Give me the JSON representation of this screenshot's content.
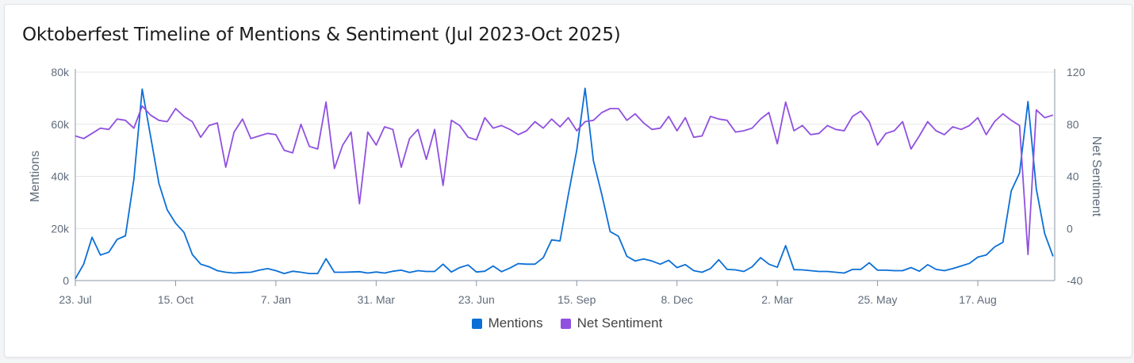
{
  "title": "Oktoberfest Timeline of Mentions & Sentiment (Jul 2023-Oct 2025)",
  "colors": {
    "mentions": "#0b6fd6",
    "sentiment": "#9050e0"
  },
  "chart_data": {
    "type": "line",
    "title": "Oktoberfest Timeline of Mentions & Sentiment (Jul 2023-Oct 2025)",
    "x_unit": "week index from 23. Jul 2023 (weekly)",
    "x_ticks": [
      {
        "week": 0,
        "label": "23. Jul"
      },
      {
        "week": 12,
        "label": "15. Oct"
      },
      {
        "week": 24,
        "label": "7. Jan"
      },
      {
        "week": 36,
        "label": "31. Mar"
      },
      {
        "week": 48,
        "label": "23. Jun"
      },
      {
        "week": 60,
        "label": "15. Sep"
      },
      {
        "week": 72,
        "label": "8. Dec"
      },
      {
        "week": 84,
        "label": "2. Mar"
      },
      {
        "week": 96,
        "label": "25. May"
      },
      {
        "week": 108,
        "label": "17. Aug"
      }
    ],
    "y_left": {
      "label": "Mentions",
      "ylim": [
        0,
        80000
      ],
      "ticks": [
        0,
        20000,
        40000,
        60000,
        80000
      ],
      "tick_labels": [
        "0",
        "20k",
        "40k",
        "60k",
        "80k"
      ]
    },
    "y_right": {
      "label": "Net Sentiment",
      "ylim": [
        -40,
        120
      ],
      "ticks": [
        -40,
        0,
        40,
        80,
        120
      ],
      "tick_labels": [
        "-40",
        "0",
        "40",
        "80",
        "120"
      ]
    },
    "grid": true,
    "legend_position": "bottom-center",
    "series": [
      {
        "name": "Mentions",
        "axis": "left",
        "values": [
          700,
          6300,
          16600,
          9800,
          10900,
          15800,
          17200,
          38800,
          73500,
          55500,
          37300,
          27100,
          22000,
          18500,
          10000,
          6300,
          5300,
          3800,
          3200,
          2900,
          3100,
          3200,
          4000,
          4600,
          3800,
          2700,
          3600,
          3200,
          2700,
          2700,
          8400,
          3200,
          3200,
          3300,
          3400,
          2900,
          3300,
          2900,
          3600,
          4000,
          3100,
          3800,
          3500,
          3500,
          6300,
          3300,
          5000,
          6000,
          3300,
          3600,
          5600,
          3400,
          4800,
          6500,
          6300,
          6300,
          8800,
          15600,
          15200,
          33000,
          50000,
          73800,
          46000,
          33000,
          18800,
          17000,
          9300,
          7500,
          8300,
          7500,
          6300,
          7800,
          5000,
          6100,
          3800,
          3200,
          4600,
          8000,
          4300,
          4100,
          3500,
          5300,
          8800,
          6300,
          5100,
          13400,
          4200,
          4100,
          3800,
          3500,
          3500,
          3200,
          2900,
          4300,
          4300,
          6800,
          4000,
          4000,
          3800,
          3800,
          5000,
          3600,
          6100,
          4300,
          3800,
          4600,
          5600,
          6600,
          9000,
          9800,
          12900,
          14700,
          34400,
          41300,
          68700,
          35200,
          18000,
          9300
        ]
      },
      {
        "name": "Net Sentiment",
        "axis": "right",
        "values": [
          71,
          69,
          73,
          77,
          76,
          84,
          83,
          77,
          94,
          87,
          83,
          82,
          92,
          86,
          82,
          70,
          79,
          81,
          47,
          74,
          84,
          69,
          71,
          73,
          72,
          60,
          58,
          80,
          63,
          61,
          97,
          46,
          64,
          74,
          19,
          74,
          64,
          78,
          76,
          47,
          69,
          76,
          53,
          76,
          33,
          83,
          79,
          70,
          68,
          85,
          77,
          79,
          76,
          72,
          75,
          82,
          77,
          84,
          78,
          85,
          75,
          82,
          83,
          89,
          92,
          92,
          83,
          88,
          81,
          76,
          77,
          86,
          75,
          85,
          70,
          71,
          86,
          84,
          83,
          74,
          75,
          77,
          84,
          89,
          65,
          97,
          75,
          79,
          72,
          73,
          79,
          76,
          75,
          86,
          90,
          82,
          64,
          73,
          75,
          82,
          61,
          71,
          82,
          75,
          72,
          78,
          76,
          79,
          85,
          72,
          82,
          88,
          83,
          79,
          -20,
          91,
          85,
          87
        ]
      }
    ]
  }
}
